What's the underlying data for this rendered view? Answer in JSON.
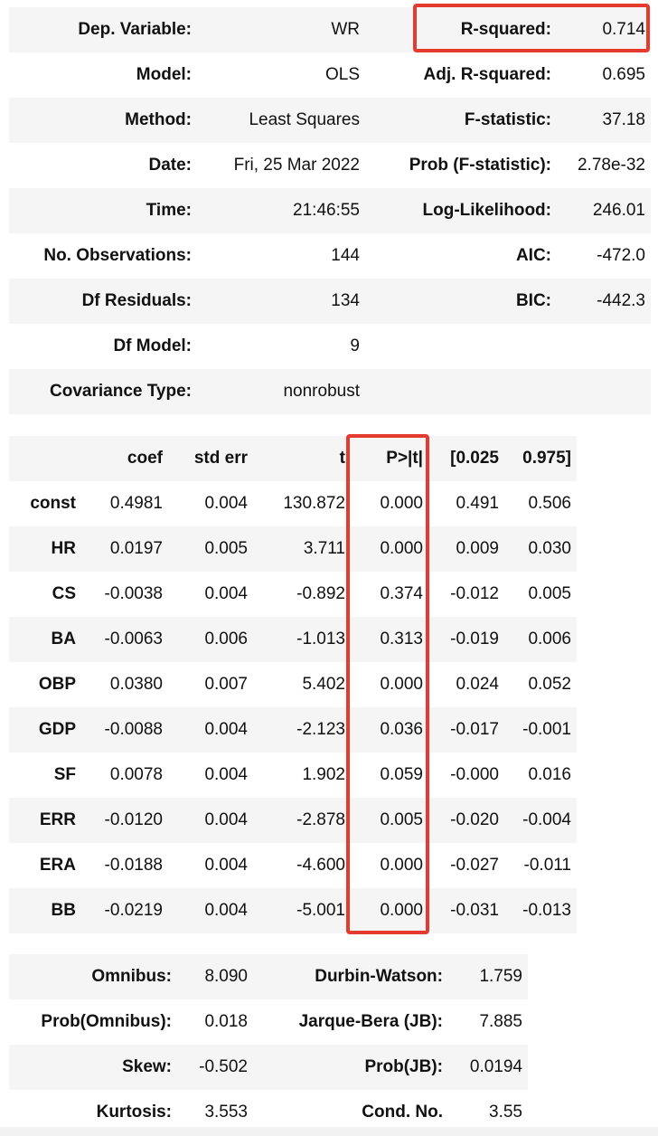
{
  "summary": {
    "rows": [
      [
        "Dep. Variable:",
        "WR",
        "R-squared:",
        "0.714"
      ],
      [
        "Model:",
        "OLS",
        "Adj. R-squared:",
        "0.695"
      ],
      [
        "Method:",
        "Least Squares",
        "F-statistic:",
        "37.18"
      ],
      [
        "Date:",
        "Fri, 25 Mar 2022",
        "Prob (F-statistic):",
        "2.78e-32"
      ],
      [
        "Time:",
        "21:46:55",
        "Log-Likelihood:",
        "246.01"
      ],
      [
        "No. Observations:",
        "144",
        "AIC:",
        "-472.0"
      ],
      [
        "Df Residuals:",
        "134",
        "BIC:",
        "-442.3"
      ],
      [
        "Df Model:",
        "9",
        "",
        ""
      ],
      [
        "Covariance Type:",
        "nonrobust",
        "",
        ""
      ]
    ]
  },
  "coefficients": {
    "headers": [
      "",
      "coef",
      "std err",
      "t",
      "P>|t|",
      "[0.025",
      "0.975]"
    ],
    "rows": [
      [
        "const",
        "0.4981",
        "0.004",
        "130.872",
        "0.000",
        "0.491",
        "0.506"
      ],
      [
        "HR",
        "0.0197",
        "0.005",
        "3.711",
        "0.000",
        "0.009",
        "0.030"
      ],
      [
        "CS",
        "-0.0038",
        "0.004",
        "-0.892",
        "0.374",
        "-0.012",
        "0.005"
      ],
      [
        "BA",
        "-0.0063",
        "0.006",
        "-1.013",
        "0.313",
        "-0.019",
        "0.006"
      ],
      [
        "OBP",
        "0.0380",
        "0.007",
        "5.402",
        "0.000",
        "0.024",
        "0.052"
      ],
      [
        "GDP",
        "-0.0088",
        "0.004",
        "-2.123",
        "0.036",
        "-0.017",
        "-0.001"
      ],
      [
        "SF",
        "0.0078",
        "0.004",
        "1.902",
        "0.059",
        "-0.000",
        "0.016"
      ],
      [
        "ERR",
        "-0.0120",
        "0.004",
        "-2.878",
        "0.005",
        "-0.020",
        "-0.004"
      ],
      [
        "ERA",
        "-0.0188",
        "0.004",
        "-4.600",
        "0.000",
        "-0.027",
        "-0.011"
      ],
      [
        "BB",
        "-0.0219",
        "0.004",
        "-5.001",
        "0.000",
        "-0.031",
        "-0.013"
      ]
    ]
  },
  "diagnostics": {
    "rows": [
      [
        "Omnibus:",
        "8.090",
        "Durbin-Watson:",
        "1.759"
      ],
      [
        "Prob(Omnibus):",
        "0.018",
        "Jarque-Bera (JB):",
        "7.885"
      ],
      [
        "Skew:",
        "-0.502",
        "Prob(JB):",
        "0.0194"
      ],
      [
        "Kurtosis:",
        "3.553",
        "Cond. No.",
        "3.55"
      ]
    ]
  },
  "highlight_color": "#e53a2f"
}
